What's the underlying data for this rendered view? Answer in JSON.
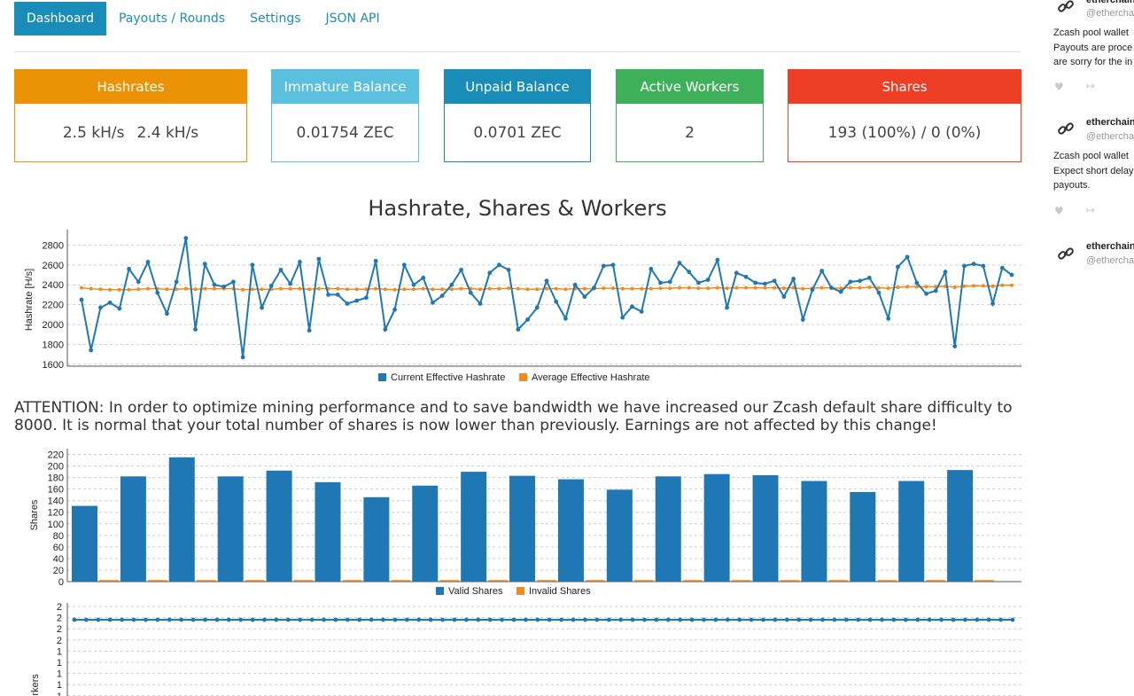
{
  "nav": {
    "tabs": [
      {
        "label": "Dashboard",
        "active": true
      },
      {
        "label": "Payouts / Rounds",
        "active": false
      },
      {
        "label": "Settings",
        "active": false
      },
      {
        "label": "JSON API",
        "active": false
      }
    ]
  },
  "stats": {
    "hashrates": {
      "title": "Hashrates",
      "current": "2.5 kH/s",
      "average": "2.4 kH/s",
      "color": "#ec9305"
    },
    "immature": {
      "title": "Immature Balance",
      "value": "0.01754 ZEC",
      "color": "#5bc0de"
    },
    "unpaid": {
      "title": "Unpaid Balance",
      "value": "0.0701 ZEC",
      "color": "#1a8cb8"
    },
    "workers": {
      "title": "Active Workers",
      "value": "2",
      "color": "#3fb05a"
    },
    "shares": {
      "title": "Shares",
      "value": "193 (100%) / 0 (0%)",
      "color": "#ee3e25"
    }
  },
  "chart_title": "Hashrate, Shares & Workers",
  "attention": "ATTENTION: In order to optimize mining performance and to save bandwidth we have increased our Zcash default share difficulty to 8000. It is normal that your total number of shares is now lower than previously. Earnings are not affected by this change!",
  "sidebar": {
    "tweets": [
      {
        "name": "etherchain",
        "handle": "@etherchain",
        "lines": [
          "Zcash pool wallet",
          "Payouts are proce",
          "are sorry for the in"
        ]
      },
      {
        "name": "etherchain",
        "handle": "@etherchain",
        "lines": [
          "Zcash pool wallet",
          "Expect short delay",
          "payouts."
        ]
      },
      {
        "name": "etherchain",
        "handle": "@etherchain",
        "lines": []
      }
    ],
    "icons": {
      "avatar": "link-icon",
      "like": "heart-icon",
      "share": "share-icon"
    }
  },
  "chart_data": [
    {
      "type": "line",
      "ylabel": "Hashrate [H/s]",
      "yticks": [
        1600,
        1800,
        2000,
        2200,
        2400,
        2600,
        2800
      ],
      "ylim": [
        1580,
        2920
      ],
      "grid": true,
      "legend_position": "bottom",
      "series": [
        {
          "name": "Current Effective Hashrate",
          "color": "#1f78b4",
          "values": [
            2250,
            1740,
            2170,
            2220,
            2160,
            2560,
            2430,
            2630,
            2320,
            2110,
            2430,
            2870,
            1950,
            2610,
            2400,
            2380,
            2430,
            1670,
            2600,
            2170,
            2390,
            2550,
            2410,
            2630,
            1940,
            2660,
            2300,
            2300,
            2210,
            2240,
            2270,
            2640,
            1950,
            2150,
            2600,
            2400,
            2470,
            2220,
            2290,
            2400,
            2550,
            2320,
            2210,
            2520,
            2600,
            2550,
            1950,
            2050,
            2170,
            2440,
            2230,
            2060,
            2400,
            2280,
            2370,
            2590,
            2600,
            2070,
            2180,
            2130,
            2560,
            2420,
            2430,
            2620,
            2530,
            2420,
            2450,
            2650,
            2170,
            2520,
            2480,
            2420,
            2410,
            2440,
            2280,
            2460,
            2050,
            2350,
            2540,
            2370,
            2330,
            2430,
            2440,
            2470,
            2320,
            2060,
            2580,
            2680,
            2420,
            2310,
            2340,
            2530,
            1780,
            2590,
            2610,
            2590,
            2210,
            2570,
            2500
          ]
        },
        {
          "name": "Average Effective Hashrate",
          "color": "#f28a1d",
          "values": [
            2370,
            2360,
            2355,
            2350,
            2350,
            2350,
            2355,
            2360,
            2360,
            2355,
            2355,
            2360,
            2355,
            2360,
            2360,
            2360,
            2360,
            2350,
            2355,
            2355,
            2355,
            2360,
            2360,
            2360,
            2355,
            2360,
            2360,
            2360,
            2355,
            2355,
            2355,
            2360,
            2355,
            2350,
            2355,
            2355,
            2360,
            2355,
            2355,
            2355,
            2360,
            2360,
            2355,
            2360,
            2360,
            2365,
            2360,
            2355,
            2355,
            2360,
            2360,
            2355,
            2360,
            2360,
            2360,
            2365,
            2365,
            2360,
            2360,
            2360,
            2360,
            2365,
            2365,
            2370,
            2370,
            2365,
            2365,
            2370,
            2365,
            2370,
            2370,
            2370,
            2370,
            2370,
            2365,
            2370,
            2360,
            2365,
            2370,
            2370,
            2365,
            2370,
            2370,
            2375,
            2370,
            2365,
            2375,
            2380,
            2380,
            2380,
            2380,
            2385,
            2375,
            2385,
            2390,
            2390,
            2385,
            2395,
            2395
          ]
        }
      ]
    },
    {
      "type": "bar",
      "ylabel": "Shares",
      "yticks": [
        0,
        20,
        40,
        60,
        80,
        100,
        120,
        140,
        160,
        180,
        200,
        220
      ],
      "ylim": [
        0,
        230
      ],
      "grid": true,
      "legend_position": "bottom",
      "series": [
        {
          "name": "Valid Shares",
          "color": "#1f78b4",
          "values": [
            131,
            182,
            215,
            182,
            192,
            172,
            146,
            166,
            190,
            183,
            177,
            159,
            182,
            186,
            184,
            174,
            155,
            174,
            193
          ]
        },
        {
          "name": "Invalid Shares",
          "color": "#f28a1d",
          "values": [
            0,
            0,
            0,
            0,
            0,
            0,
            0,
            0,
            0,
            0,
            0,
            0,
            0,
            0,
            0,
            0,
            0,
            0,
            0
          ]
        }
      ]
    },
    {
      "type": "line",
      "ylabel": "ive Workers",
      "yticks": [
        "1",
        "1",
        "1",
        "1",
        "1",
        "2",
        "2",
        "2",
        "2"
      ],
      "grid": true,
      "series": [
        {
          "name": "",
          "color": "#1f78b4",
          "values": [
            2,
            2,
            2,
            2,
            2,
            2,
            2,
            2,
            2,
            2,
            2,
            2,
            2,
            2,
            2,
            2,
            2,
            2,
            2,
            2,
            2,
            2,
            2,
            2,
            2,
            2,
            2,
            2,
            2,
            2,
            2,
            2,
            2,
            2,
            2,
            2,
            2,
            2,
            2,
            2,
            2,
            2,
            2,
            2,
            2,
            2,
            2,
            2,
            2,
            2,
            2,
            2,
            2,
            2,
            2,
            2,
            2,
            2,
            2,
            2,
            2,
            2,
            2,
            2,
            2,
            2,
            2,
            2,
            2,
            2,
            2,
            2,
            2,
            2,
            2,
            2,
            2,
            2,
            2,
            2
          ]
        }
      ]
    }
  ]
}
